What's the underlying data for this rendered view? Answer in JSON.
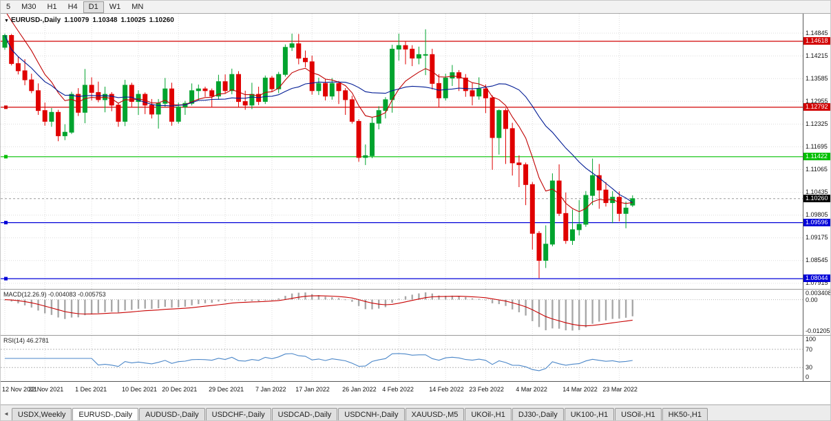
{
  "toolbar": {
    "timeframes": [
      "5",
      "M30",
      "H1",
      "H4",
      "D1",
      "W1",
      "MN"
    ],
    "active": "D1"
  },
  "chart_header": {
    "symbol": "EURUSD-,Daily",
    "open": "1.10079",
    "high": "1.10348",
    "low": "1.10025",
    "close": "1.10260"
  },
  "price_axis": {
    "ticks": [
      "1.14845",
      "1.14215",
      "1.13585",
      "1.12955",
      "1.12325",
      "1.11695",
      "1.11065",
      "1.10435",
      "1.09805",
      "1.09175",
      "1.08545",
      "1.07915"
    ]
  },
  "hlines": [
    {
      "label": "1.14618",
      "price": 1.14618,
      "color": "#d20000"
    },
    {
      "label": "1.12792",
      "price": 1.12792,
      "color": "#d20000"
    },
    {
      "label": "1.11422",
      "price": 1.11422,
      "color": "#00c000"
    },
    {
      "label": "1.09596",
      "price": 1.09596,
      "color": "#0000d8"
    },
    {
      "label": "1.08044",
      "price": 1.08044,
      "color": "#0000d8"
    }
  ],
  "current_price": {
    "label": "1.10260",
    "price": 1.1026,
    "badge_color": "#000000"
  },
  "indicators": {
    "macd": {
      "label": "MACD(12.26.9) -0.004083 -0.005753",
      "axis": [
        "0.003408",
        "0.00",
        "-0.01205"
      ],
      "max": 0.003408,
      "min": -0.01205,
      "histogram_color": "#a8a8a8",
      "signal_color": "#c80000"
    },
    "rsi": {
      "label": "RSI(14) 46.2781",
      "axis": [
        "100",
        "70",
        "30",
        "0"
      ],
      "levels": [
        70,
        30
      ],
      "line_color": "#4a86c8"
    }
  },
  "time_axis": {
    "labels": [
      {
        "text": "12 Nov 2021",
        "index": 0
      },
      {
        "text": "22 Nov 2021",
        "index": 6
      },
      {
        "text": "1 Dec 2021",
        "index": 13
      },
      {
        "text": "10 Dec 2021",
        "index": 20
      },
      {
        "text": "20 Dec 2021",
        "index": 26
      },
      {
        "text": "29 Dec 2021",
        "index": 33
      },
      {
        "text": "7 Jan 2022",
        "index": 40
      },
      {
        "text": "17 Jan 2022",
        "index": 46
      },
      {
        "text": "26 Jan 2022",
        "index": 53
      },
      {
        "text": "4 Feb 2022",
        "index": 59
      },
      {
        "text": "14 Feb 2022",
        "index": 66
      },
      {
        "text": "23 Feb 2022",
        "index": 72
      },
      {
        "text": "4 Mar 2022",
        "index": 79
      },
      {
        "text": "14 Mar 2022",
        "index": 86
      },
      {
        "text": "23 Mar 2022",
        "index": 92
      }
    ]
  },
  "bottom_tabs": {
    "items": [
      "USDX,Weekly",
      "EURUSD-,Daily",
      "AUDUSD-,Daily",
      "USDCHF-,Daily",
      "USDCAD-,Daily",
      "USDCNH-,Daily",
      "XAUUSD-,M5",
      "UKOil-,H1",
      "DJ30-,Daily",
      "UK100-,H1",
      "USOil-,H1",
      "HK50-,H1"
    ],
    "active": "EURUSD-,Daily"
  },
  "chart_data": {
    "type": "candlestick",
    "symbol": "EURUSD-",
    "timeframe": "Daily",
    "price_range": [
      1.0776,
      1.1538
    ],
    "candle_slot": 9.7,
    "up_color": "#00a32e",
    "down_color": "#e00000",
    "grid_color": "#dcdcdc",
    "moving_averages": [
      {
        "period": 9,
        "type": "ema",
        "color": "#c00000",
        "seed": 1.1565
      },
      {
        "period": 20,
        "type": "sma",
        "color": "#001b94"
      }
    ],
    "ohlc": [
      [
        1.1445,
        1.1483,
        1.1438,
        1.1478
      ],
      [
        1.1478,
        1.1482,
        1.1395,
        1.14
      ],
      [
        1.14,
        1.142,
        1.137,
        1.138
      ],
      [
        1.138,
        1.1412,
        1.134,
        1.1355
      ],
      [
        1.1355,
        1.1372,
        1.1318,
        1.1325
      ],
      [
        1.1325,
        1.1345,
        1.1258,
        1.127
      ],
      [
        1.127,
        1.1292,
        1.1228,
        1.124
      ],
      [
        1.124,
        1.1277,
        1.1225,
        1.1265
      ],
      [
        1.1265,
        1.1272,
        1.1185,
        1.12
      ],
      [
        1.12,
        1.1232,
        1.1188,
        1.121
      ],
      [
        1.121,
        1.1322,
        1.1205,
        1.1315
      ],
      [
        1.1315,
        1.1332,
        1.1255,
        1.1265
      ],
      [
        1.1265,
        1.1385,
        1.1235,
        1.134
      ],
      [
        1.134,
        1.1362,
        1.1298,
        1.132
      ],
      [
        1.132,
        1.135,
        1.1293,
        1.13
      ],
      [
        1.13,
        1.1336,
        1.1265,
        1.1315
      ],
      [
        1.1315,
        1.1321,
        1.1268,
        1.1285
      ],
      [
        1.1285,
        1.1292,
        1.1225,
        1.124
      ],
      [
        1.124,
        1.1355,
        1.1227,
        1.134
      ],
      [
        1.134,
        1.1347,
        1.1278,
        1.1295
      ],
      [
        1.1295,
        1.1326,
        1.1258,
        1.1315
      ],
      [
        1.1315,
        1.132,
        1.126,
        1.1285
      ],
      [
        1.1285,
        1.1302,
        1.1248,
        1.126
      ],
      [
        1.126,
        1.1302,
        1.122,
        1.129
      ],
      [
        1.129,
        1.136,
        1.128,
        1.133
      ],
      [
        1.133,
        1.1347,
        1.1228,
        1.124
      ],
      [
        1.124,
        1.1292,
        1.1234,
        1.128
      ],
      [
        1.128,
        1.1297,
        1.1258,
        1.129
      ],
      [
        1.129,
        1.1345,
        1.1284,
        1.1325
      ],
      [
        1.1325,
        1.1342,
        1.1298,
        1.133
      ],
      [
        1.133,
        1.1336,
        1.1308,
        1.1325
      ],
      [
        1.1325,
        1.1331,
        1.1278,
        1.131
      ],
      [
        1.131,
        1.1369,
        1.13,
        1.135
      ],
      [
        1.135,
        1.137,
        1.1318,
        1.1325
      ],
      [
        1.1325,
        1.1386,
        1.1315,
        1.137
      ],
      [
        1.137,
        1.1379,
        1.1278,
        1.1295
      ],
      [
        1.1295,
        1.1325,
        1.1272,
        1.1285
      ],
      [
        1.1285,
        1.1347,
        1.1274,
        1.1315
      ],
      [
        1.1315,
        1.1336,
        1.1285,
        1.1295
      ],
      [
        1.1295,
        1.1367,
        1.1288,
        1.136
      ],
      [
        1.136,
        1.1366,
        1.1322,
        1.133
      ],
      [
        1.133,
        1.1377,
        1.1318,
        1.137
      ],
      [
        1.137,
        1.1453,
        1.1364,
        1.1445
      ],
      [
        1.1445,
        1.1483,
        1.1435,
        1.1455
      ],
      [
        1.1455,
        1.1482,
        1.1398,
        1.1415
      ],
      [
        1.1415,
        1.1436,
        1.139,
        1.1405
      ],
      [
        1.1405,
        1.1422,
        1.1314,
        1.1325
      ],
      [
        1.1325,
        1.1361,
        1.1313,
        1.1345
      ],
      [
        1.1345,
        1.1357,
        1.1298,
        1.131
      ],
      [
        1.131,
        1.136,
        1.13,
        1.1345
      ],
      [
        1.1345,
        1.1352,
        1.1288,
        1.1325
      ],
      [
        1.1325,
        1.1332,
        1.1258,
        1.13
      ],
      [
        1.13,
        1.1311,
        1.1234,
        1.124
      ],
      [
        1.124,
        1.1246,
        1.1128,
        1.114
      ],
      [
        1.114,
        1.1176,
        1.1119,
        1.1145
      ],
      [
        1.1145,
        1.1252,
        1.1138,
        1.1235
      ],
      [
        1.1235,
        1.1282,
        1.1218,
        1.127
      ],
      [
        1.127,
        1.1307,
        1.1248,
        1.13
      ],
      [
        1.13,
        1.1452,
        1.1264,
        1.144
      ],
      [
        1.144,
        1.1483,
        1.1408,
        1.145
      ],
      [
        1.145,
        1.1462,
        1.1398,
        1.144
      ],
      [
        1.144,
        1.1451,
        1.1393,
        1.1415
      ],
      [
        1.1415,
        1.1447,
        1.1398,
        1.1425
      ],
      [
        1.1425,
        1.1495,
        1.1368,
        1.1425
      ],
      [
        1.1425,
        1.1441,
        1.1328,
        1.1345
      ],
      [
        1.1345,
        1.1371,
        1.1278,
        1.1305
      ],
      [
        1.1305,
        1.1372,
        1.1298,
        1.136
      ],
      [
        1.136,
        1.1396,
        1.1338,
        1.1375
      ],
      [
        1.1375,
        1.1382,
        1.1324,
        1.136
      ],
      [
        1.136,
        1.1371,
        1.1308,
        1.1325
      ],
      [
        1.1325,
        1.1346,
        1.1284,
        1.131
      ],
      [
        1.131,
        1.1362,
        1.13,
        1.133
      ],
      [
        1.133,
        1.1342,
        1.1263,
        1.1305
      ],
      [
        1.1305,
        1.1312,
        1.1106,
        1.1195
      ],
      [
        1.1195,
        1.1273,
        1.1148,
        1.127
      ],
      [
        1.127,
        1.1276,
        1.1122,
        1.122
      ],
      [
        1.122,
        1.1236,
        1.109,
        1.1125
      ],
      [
        1.1125,
        1.1146,
        1.1058,
        1.112
      ],
      [
        1.112,
        1.1126,
        1.1008,
        1.1065
      ],
      [
        1.1065,
        1.1072,
        1.0885,
        1.093
      ],
      [
        1.093,
        1.0936,
        1.0806,
        1.0855
      ],
      [
        1.0855,
        1.0952,
        1.0834,
        1.09
      ],
      [
        1.09,
        1.1096,
        1.0894,
        1.1075
      ],
      [
        1.1075,
        1.1121,
        1.0978,
        1.0985
      ],
      [
        1.0985,
        1.1043,
        1.0901,
        1.091
      ],
      [
        1.091,
        1.0996,
        1.0898,
        1.094
      ],
      [
        1.094,
        1.1022,
        1.0924,
        1.0955
      ],
      [
        1.0955,
        1.1047,
        1.0948,
        1.1035
      ],
      [
        1.1035,
        1.1137,
        1.1008,
        1.109
      ],
      [
        1.109,
        1.1122,
        1.0998,
        1.105
      ],
      [
        1.105,
        1.1072,
        1.1004,
        1.1015
      ],
      [
        1.1015,
        1.1047,
        1.0958,
        1.103
      ],
      [
        1.103,
        1.1046,
        1.0963,
        1.0985
      ],
      [
        1.0985,
        1.1018,
        1.0944,
        1.1
      ],
      [
        1.1008,
        1.1035,
        1.1003,
        1.1026
      ]
    ]
  }
}
